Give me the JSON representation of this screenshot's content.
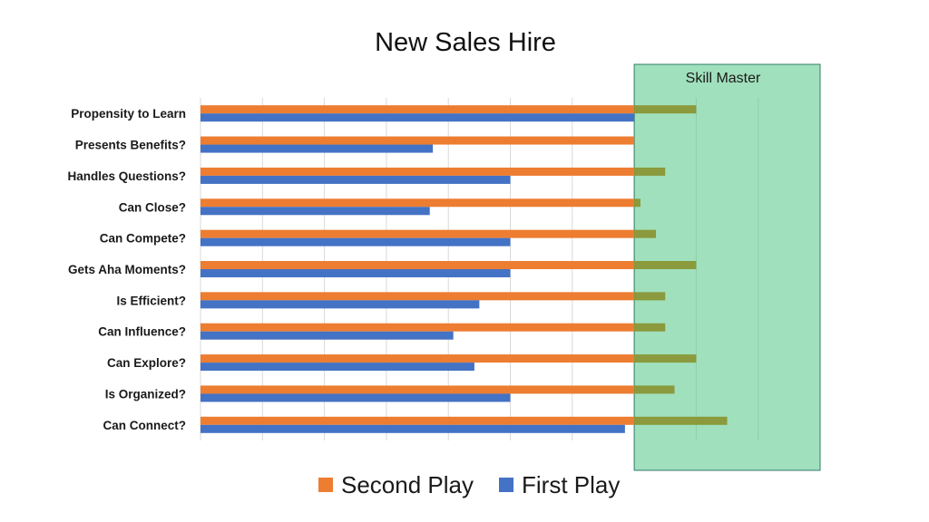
{
  "chart_data": {
    "type": "bar",
    "orientation": "horizontal",
    "title": "New Sales Hire",
    "categories": [
      "Propensity to Learn",
      "Presents Benefits?",
      "Handles Questions?",
      "Can Close?",
      "Can Compete?",
      "Gets Aha Moments?",
      "Is Efficient?",
      "Can Influence?",
      "Can Explore?",
      "Is Organized?",
      "Can Connect?"
    ],
    "series": [
      {
        "name": "Second Play",
        "color": "#ED7D31",
        "values": [
          8,
          7,
          7.5,
          7.1,
          7.35,
          8,
          7.5,
          7.5,
          8,
          7.65,
          8.5
        ]
      },
      {
        "name": "First Play",
        "color": "#4472C4",
        "values": [
          7,
          3.75,
          5,
          3.7,
          5,
          5,
          4.5,
          4.08,
          4.42,
          5,
          6.85
        ]
      }
    ],
    "xlim": [
      0,
      10
    ],
    "grid": "vertical",
    "legend": "bottom",
    "overlay": {
      "label": "Skill Master",
      "from": 7,
      "to": 10,
      "fill": "#A0E0BC",
      "border": "#2E7D6B",
      "overlap_color": "#8A9A3C"
    }
  }
}
